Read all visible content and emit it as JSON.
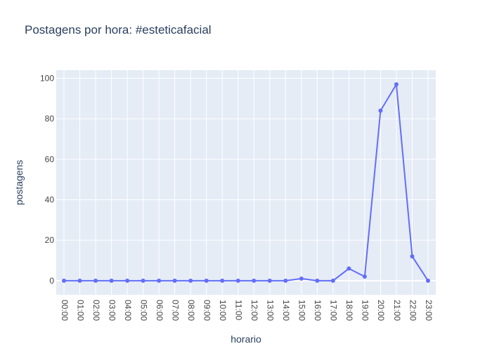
{
  "chart_data": {
    "type": "line",
    "title": "Postagens por hora: #esteticafacial",
    "xlabel": "horario",
    "ylabel": "postagens",
    "categories": [
      "00:00",
      "01:00",
      "02:00",
      "03:00",
      "04:00",
      "05:00",
      "06:00",
      "07:00",
      "08:00",
      "09:00",
      "10:00",
      "11:00",
      "12:00",
      "13:00",
      "14:00",
      "15:00",
      "16:00",
      "17:00",
      "18:00",
      "19:00",
      "20:00",
      "21:00",
      "22:00",
      "23:00"
    ],
    "series": [
      {
        "values": [
          0,
          0,
          0,
          0,
          0,
          0,
          0,
          0,
          0,
          0,
          0,
          0,
          0,
          0,
          0,
          1,
          0,
          0,
          6,
          2,
          84,
          97,
          12,
          0
        ],
        "color": "#636efa"
      }
    ],
    "ylim": [
      -7,
      104
    ],
    "yticks": [
      0,
      20,
      40,
      60,
      80,
      100
    ],
    "grid": true,
    "legend": "none",
    "colors": {
      "plot_bg": "#e5ecf6",
      "grid": "#ffffff",
      "text": "#2a3f5f",
      "tick_text": "#444444"
    }
  }
}
